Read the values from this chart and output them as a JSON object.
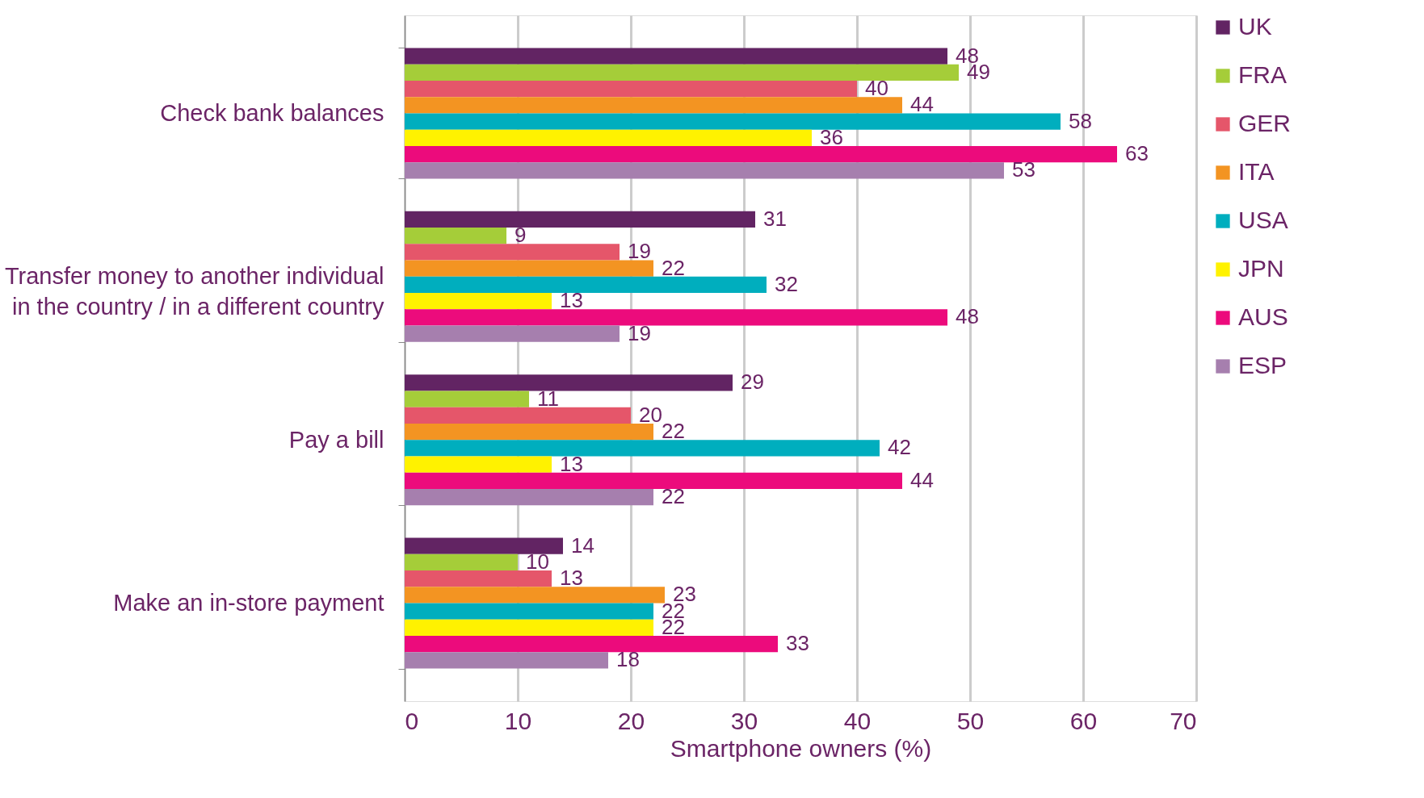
{
  "chart_data": {
    "type": "bar",
    "orientation": "horizontal",
    "xlabel": "Smartphone owners (%)",
    "categories": [
      "Check bank balances",
      "Transfer money to another individual\nin the country / in a different country",
      "Pay a bill",
      "Make an in-store payment"
    ],
    "series": [
      {
        "name": "UK",
        "color": "#622463",
        "values": [
          48,
          31,
          29,
          14
        ]
      },
      {
        "name": "FRA",
        "color": "#a5cd39",
        "values": [
          49,
          9,
          11,
          10
        ]
      },
      {
        "name": "GER",
        "color": "#e5566a",
        "values": [
          40,
          19,
          20,
          13
        ]
      },
      {
        "name": "ITA",
        "color": "#f39422",
        "values": [
          44,
          22,
          22,
          23
        ]
      },
      {
        "name": "USA",
        "color": "#00aebe",
        "values": [
          58,
          32,
          42,
          22
        ]
      },
      {
        "name": "JPN",
        "color": "#fff200",
        "values": [
          36,
          13,
          13,
          22
        ]
      },
      {
        "name": "AUS",
        "color": "#ec0b7c",
        "values": [
          63,
          48,
          44,
          33
        ]
      },
      {
        "name": "ESP",
        "color": "#a67fae",
        "values": [
          53,
          19,
          22,
          18
        ]
      }
    ],
    "xlim": [
      0,
      70
    ],
    "xticks": [
      0,
      10,
      20,
      30,
      40,
      50,
      60,
      70
    ],
    "grid": "x",
    "legend": "right",
    "data_labels": true
  }
}
